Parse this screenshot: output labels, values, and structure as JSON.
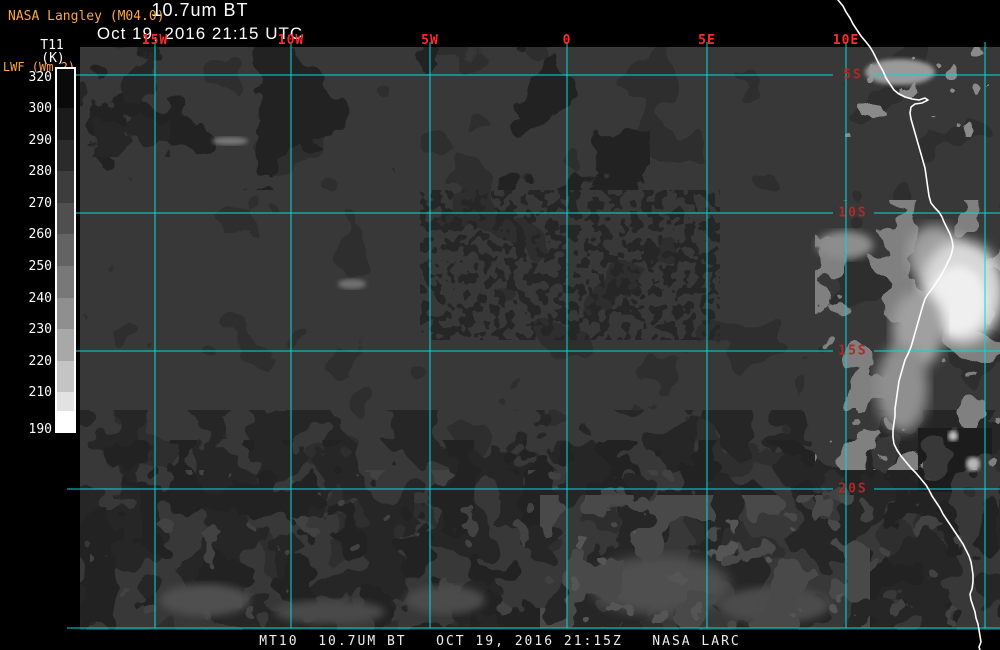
{
  "header": {
    "credit": "NASA Langley (M04.0)",
    "title": "10.7um BT",
    "datetime": "Oct 19, 2016 21:15 UTC"
  },
  "colorbar": {
    "label_line1": "T11",
    "label_line2": "(K)",
    "label_line3": "LWF (Wm-2)",
    "units": "K",
    "ticks": [
      "320",
      "300",
      "290",
      "280",
      "270",
      "260",
      "250",
      "240",
      "230",
      "220",
      "210",
      "190"
    ],
    "segment_colors": [
      "#0a0a0a",
      "#1b1b1b",
      "#2b2b2b",
      "#3d3d3d",
      "#4f4f4f",
      "#636363",
      "#787878",
      "#8f8f8f",
      "#a8a8a8",
      "#c4c4c4",
      "#e2e2e2",
      "#ffffff"
    ]
  },
  "map": {
    "lon_labels": [
      "15W",
      "10W",
      "5W",
      "0",
      "5E",
      "10E"
    ],
    "lat_labels": [
      "5S",
      "10S",
      "15S",
      "20S"
    ]
  },
  "footer": {
    "caption": "MT10  10.7UM BT   OCT 19, 2016 21:15Z   NASA LARC"
  },
  "colors": {
    "grid": "#00dcdc",
    "lon_label": "#ff2a2a",
    "lat_label": "#b02828",
    "credit_orange": "#ffa640",
    "coastline": "#ffffff",
    "ocean_base": "#383838"
  }
}
